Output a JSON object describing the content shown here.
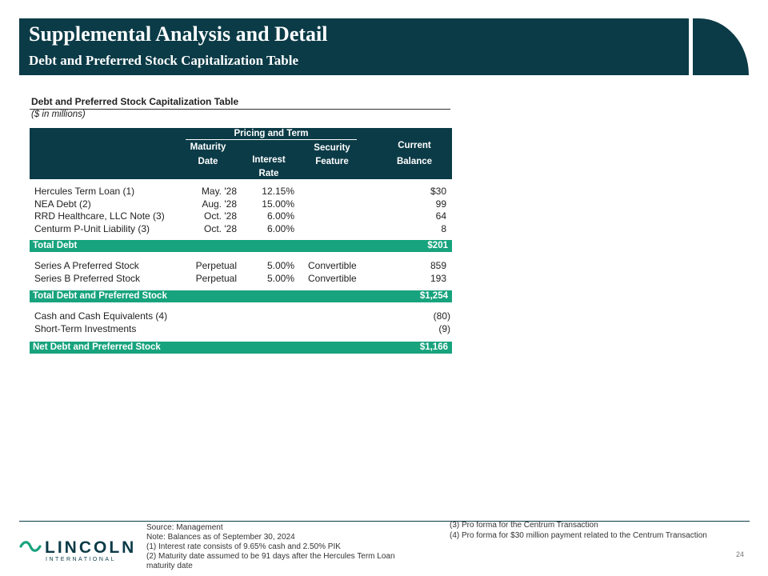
{
  "header": {
    "title": "Supplemental Analysis and Detail",
    "subtitle": "Debt and Preferred Stock Capitalization Table"
  },
  "table": {
    "title": "Debt and Preferred Stock Capitalization Table",
    "units": "($ in millions)",
    "group_header": "Pricing and Term",
    "columns": {
      "maturity_date": [
        "Maturity",
        "Date"
      ],
      "interest_rate": [
        "Interest",
        "Rate"
      ],
      "security_feature": [
        "Security",
        "Feature"
      ],
      "current_balance": [
        "Current",
        "Balance"
      ]
    },
    "debt_rows": [
      {
        "name": "Hercules Term Loan (1)",
        "maturity": "May. '28",
        "rate": "12.15%",
        "feature": "",
        "balance": "$30"
      },
      {
        "name": "NEA Debt (2)",
        "maturity": "Aug. '28",
        "rate": "15.00%",
        "feature": "",
        "balance": "99"
      },
      {
        "name": "RRD Healthcare, LLC Note (3)",
        "maturity": "Oct. '28",
        "rate": "6.00%",
        "feature": "",
        "balance": "64"
      },
      {
        "name": "Centurm P-Unit Liability (3)",
        "maturity": "Oct. '28",
        "rate": "6.00%",
        "feature": "",
        "balance": "8"
      }
    ],
    "total_debt": {
      "label": "Total Debt",
      "value": "$201"
    },
    "preferred_rows": [
      {
        "name": "Series A Preferred Stock",
        "maturity": "Perpetual",
        "rate": "5.00%",
        "feature": "Convertible",
        "balance": "859"
      },
      {
        "name": "Series B Preferred Stock",
        "maturity": "Perpetual",
        "rate": "5.00%",
        "feature": "Convertible",
        "balance": "193"
      }
    ],
    "total_debt_preferred": {
      "label": "Total Debt and Preferred Stock",
      "value": "$1,254"
    },
    "cash_rows": [
      {
        "name": "Cash and Cash Equivalents (4)",
        "balance": "(80)"
      },
      {
        "name": "Short-Term Investments",
        "balance": "(9)"
      }
    ],
    "net_total": {
      "label": "Net Debt and Preferred Stock",
      "value": "$1,166"
    }
  },
  "footer": {
    "logo_word": "LINCOLN",
    "logo_sub": "INTERNATIONAL",
    "notes_left": [
      "Source: Management",
      "Note: Balances as of September 30, 2024",
      "(1) Interest rate consists of 9.65% cash and 2.50% PIK",
      "(2) Maturity date assumed to be 91 days after the Hercules Term Loan",
      "maturity date"
    ],
    "notes_right": [
      "(3) Pro forma for the Centrum Transaction",
      "(4) Pro forma for $30 million payment related to the Centrum Transaction"
    ],
    "page_number": "24"
  },
  "colors": {
    "navy": "#0b3b47",
    "green": "#17a37d"
  }
}
